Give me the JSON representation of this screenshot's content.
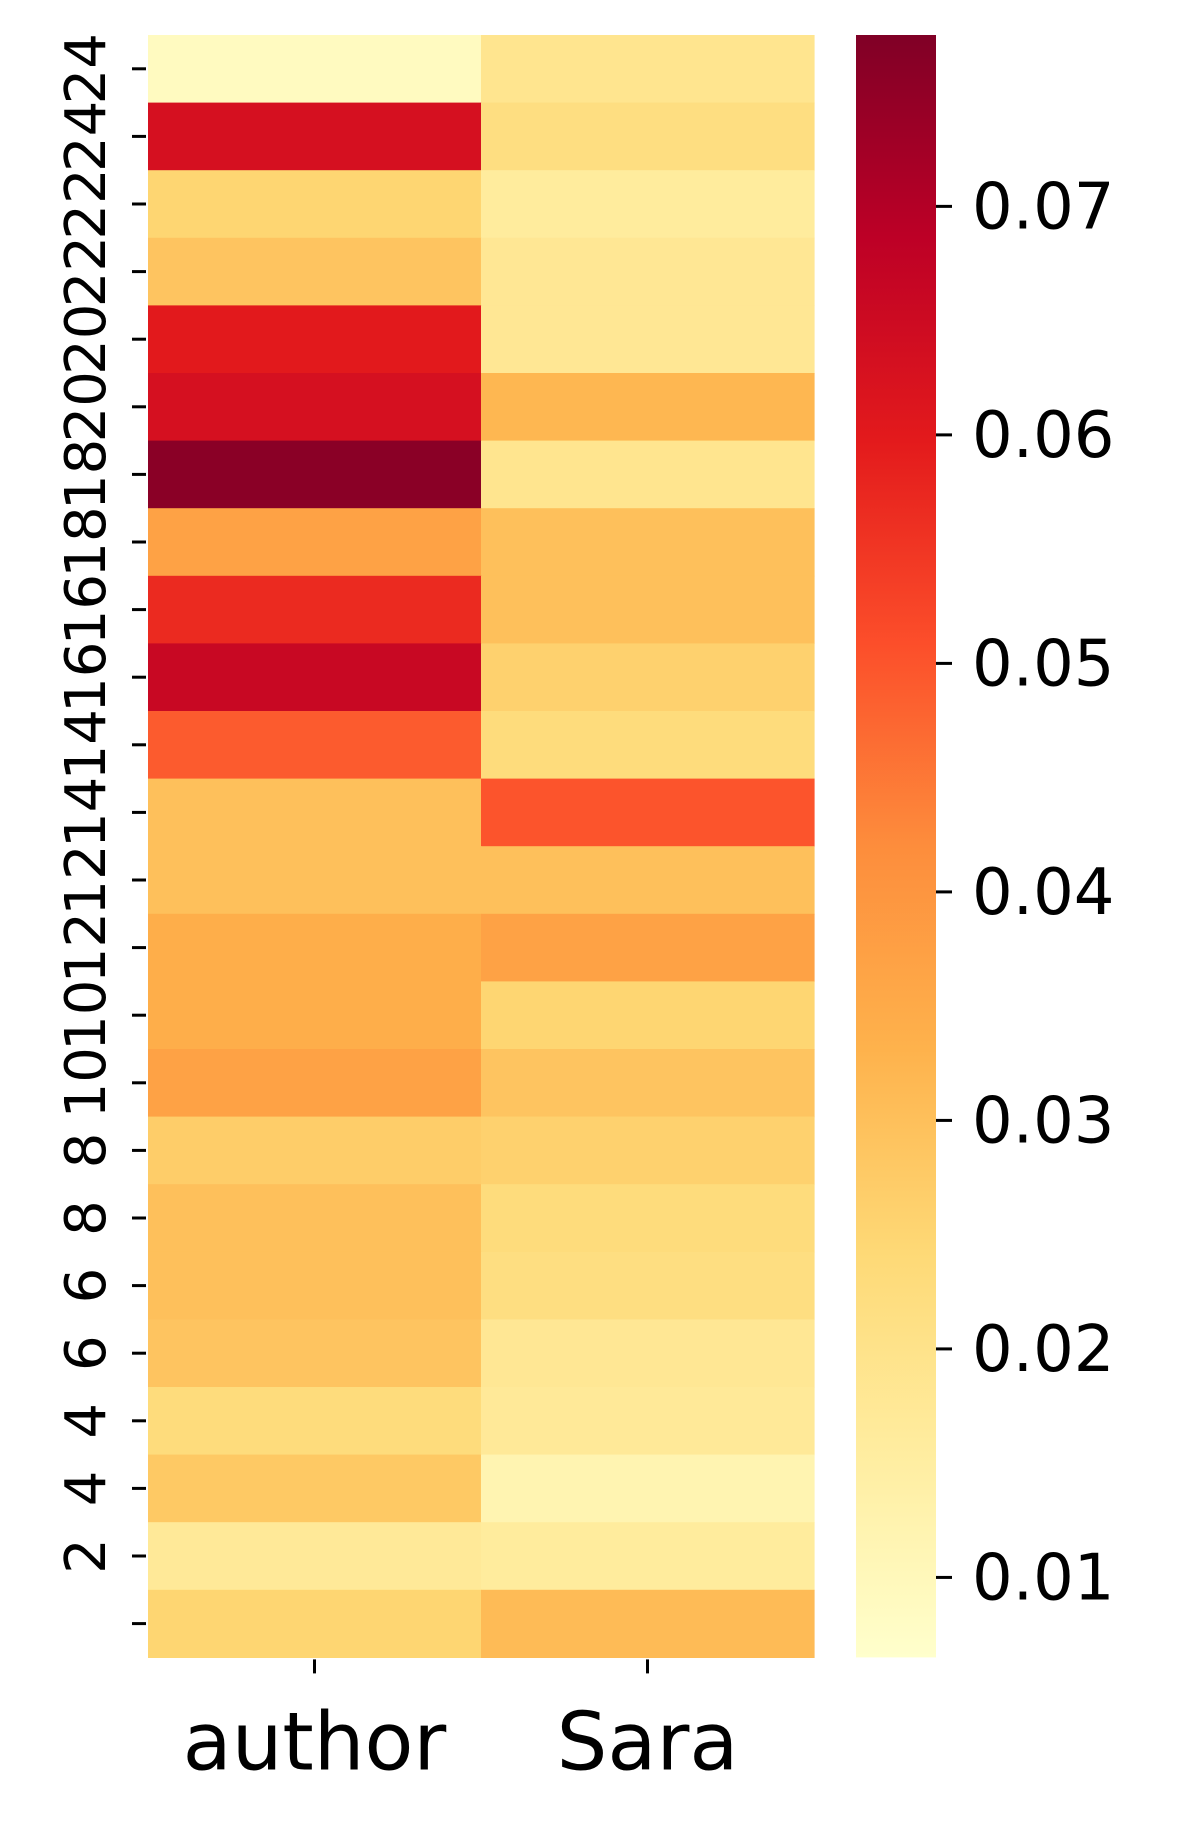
{
  "chart_data": {
    "type": "heatmap",
    "title": "",
    "xlabel": "",
    "ylabel": "",
    "x_categories": [
      "author",
      "Sara"
    ],
    "y_categories": [
      "24",
      "24",
      "22",
      "22",
      "20",
      "20",
      "18",
      "18",
      "16",
      "16",
      "14",
      "14",
      "12",
      "12",
      "10",
      "10",
      "8",
      "8",
      "6",
      "6",
      "4",
      "4",
      "2",
      "2"
    ],
    "y_tick_labels": [
      "24",
      "24",
      "22",
      "22",
      "20",
      "20",
      "18",
      "18",
      "16",
      "16",
      "14",
      "14",
      "12",
      "12",
      "10",
      "10",
      "8",
      "8",
      "6",
      "6",
      "4",
      "4",
      "2",
      ""
    ],
    "values": [
      [
        0.009,
        0.019
      ],
      [
        0.063,
        0.022
      ],
      [
        0.025,
        0.016
      ],
      [
        0.029,
        0.018
      ],
      [
        0.06,
        0.018
      ],
      [
        0.063,
        0.032
      ],
      [
        0.076,
        0.019
      ],
      [
        0.037,
        0.03
      ],
      [
        0.057,
        0.03
      ],
      [
        0.066,
        0.026
      ],
      [
        0.049,
        0.023
      ],
      [
        0.03,
        0.05
      ],
      [
        0.03,
        0.03
      ],
      [
        0.034,
        0.037
      ],
      [
        0.034,
        0.025
      ],
      [
        0.037,
        0.029
      ],
      [
        0.027,
        0.026
      ],
      [
        0.03,
        0.023
      ],
      [
        0.03,
        0.022
      ],
      [
        0.029,
        0.018
      ],
      [
        0.023,
        0.017
      ],
      [
        0.028,
        0.012
      ],
      [
        0.017,
        0.016
      ],
      [
        0.025,
        0.031
      ]
    ],
    "colorbar": {
      "min": 0.0065,
      "max": 0.0775,
      "ticks": [
        0.01,
        0.02,
        0.03,
        0.04,
        0.05,
        0.06,
        0.07
      ],
      "tick_labels": [
        "0.01",
        "0.02",
        "0.03",
        "0.04",
        "0.05",
        "0.06",
        "0.07"
      ]
    },
    "colormap": "YlOrRd",
    "colormap_stops": [
      "#ffffcc",
      "#ffeda0",
      "#fed976",
      "#feb24c",
      "#fd8d3c",
      "#fc4e2a",
      "#e31a1c",
      "#bd0026",
      "#800026"
    ]
  }
}
